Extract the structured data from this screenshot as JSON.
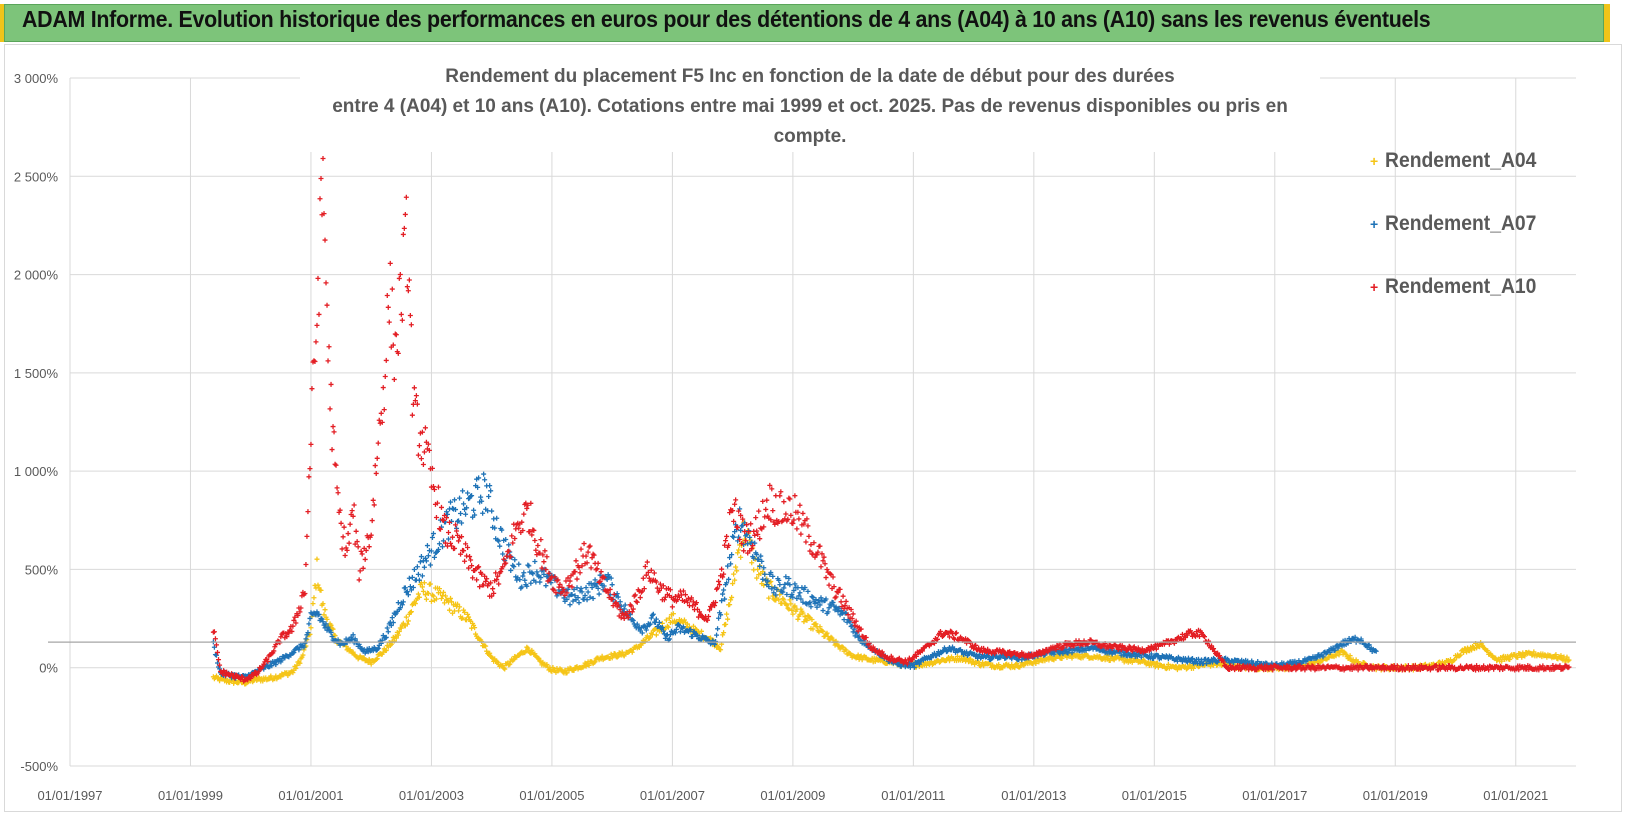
{
  "banner": {
    "title": "ADAM Informe. Evolution historique des performances en euros pour des détentions de 4 ans (A04) à 10 ans (A10) sans les revenus éventuels"
  },
  "chart_data": {
    "type": "scatter",
    "title_line1": "Rendement du placement F5 Inc en fonction de la date de début pour des durées",
    "title_line2": "entre 4 (A04) et 10 ans (A10). Cotations entre mai 1999 et oct. 2025. Pas de revenus disponibles ou pris en compte.",
    "ylim": [
      -500,
      3000
    ],
    "yticks": [
      -500,
      0,
      500,
      1000,
      1500,
      2000,
      2500,
      3000
    ],
    "ytick_labels": [
      "-500%",
      "0%",
      "500%",
      "1 000%",
      "1 500%",
      "2 000%",
      "2 500%",
      "3 000%"
    ],
    "xlim": [
      1997.0,
      2022.0
    ],
    "xtick_labels": [
      "01/01/1997",
      "01/01/1999",
      "01/01/2001",
      "01/01/2003",
      "01/01/2005",
      "01/01/2007",
      "01/01/2009",
      "01/01/2011",
      "01/01/2013",
      "01/01/2015",
      "01/01/2017",
      "01/01/2019",
      "01/01/2021"
    ],
    "grid": true,
    "legend_position": "right",
    "series": [
      {
        "name": "Rendement_A04",
        "color": "#f5c518",
        "x": [
          1999.38,
          1999.5,
          1999.7,
          1999.9,
          2000.1,
          2000.3,
          2000.5,
          2000.7,
          2000.85,
          2001.0,
          2001.1,
          2001.2,
          2001.4,
          2001.6,
          2001.8,
          2002.0,
          2002.2,
          2002.4,
          2002.6,
          2002.75,
          2002.85,
          2003.0,
          2003.2,
          2003.4,
          2003.6,
          2003.8,
          2004.0,
          2004.2,
          2004.4,
          2004.6,
          2004.8,
          2005.0,
          2005.2,
          2005.4,
          2005.6,
          2005.8,
          2006.0,
          2006.2,
          2006.4,
          2006.6,
          2006.8,
          2007.0,
          2007.2,
          2007.4,
          2007.6,
          2007.8,
          2008.0,
          2008.1,
          2008.2,
          2008.4,
          2008.6,
          2008.8,
          2009.0,
          2009.2,
          2009.4,
          2009.6,
          2009.8,
          2010.0,
          2010.3,
          2010.6,
          2010.9,
          2011.2,
          2011.5,
          2011.8,
          2012.1,
          2012.4,
          2012.7,
          2013.0,
          2013.3,
          2013.6,
          2013.9,
          2014.2,
          2014.5,
          2014.8,
          2015.1,
          2015.4,
          2015.7,
          2016.0,
          2016.3,
          2016.6,
          2016.9,
          2017.2,
          2017.5,
          2017.8,
          2018.1,
          2018.4,
          2018.7,
          2019.0,
          2019.3,
          2019.6,
          2019.9,
          2020.1,
          2020.4,
          2020.7,
          2021.0,
          2021.3,
          2021.6,
          2021.9
        ],
        "y": [
          -50,
          -60,
          -70,
          -75,
          -60,
          -55,
          -40,
          -20,
          50,
          200,
          500,
          300,
          150,
          100,
          50,
          30,
          80,
          150,
          250,
          350,
          400,
          380,
          350,
          300,
          250,
          150,
          50,
          0,
          50,
          100,
          30,
          -10,
          -20,
          0,
          20,
          50,
          60,
          70,
          100,
          150,
          200,
          250,
          220,
          180,
          150,
          100,
          400,
          600,
          700,
          500,
          400,
          350,
          300,
          250,
          200,
          150,
          100,
          60,
          40,
          30,
          10,
          20,
          40,
          50,
          20,
          10,
          10,
          30,
          50,
          60,
          60,
          50,
          40,
          30,
          10,
          0,
          10,
          20,
          10,
          0,
          0,
          0,
          10,
          40,
          80,
          20,
          0,
          0,
          0,
          10,
          30,
          80,
          120,
          40,
          60,
          70,
          60,
          40
        ]
      },
      {
        "name": "Rendement_A07",
        "color": "#1f73b7",
        "x": [
          1999.38,
          1999.5,
          1999.7,
          1999.9,
          2000.1,
          2000.3,
          2000.5,
          2000.7,
          2000.9,
          2001.0,
          2001.1,
          2001.3,
          2001.5,
          2001.7,
          2001.9,
          2002.1,
          2002.3,
          2002.5,
          2002.7,
          2002.9,
          2003.1,
          2003.3,
          2003.5,
          2003.7,
          2003.9,
          2004.1,
          2004.3,
          2004.5,
          2004.7,
          2004.9,
          2005.1,
          2005.3,
          2005.5,
          2005.7,
          2005.9,
          2006.1,
          2006.3,
          2006.5,
          2006.7,
          2006.9,
          2007.1,
          2007.3,
          2007.5,
          2007.7,
          2007.9,
          2008.1,
          2008.3,
          2008.5,
          2008.7,
          2008.9,
          2009.1,
          2009.3,
          2009.5,
          2009.7,
          2009.9,
          2010.1,
          2010.4,
          2010.7,
          2011.0,
          2011.3,
          2011.6,
          2011.9,
          2012.2,
          2012.5,
          2012.8,
          2013.1,
          2013.4,
          2013.7,
          2014.0,
          2014.3,
          2014.6,
          2014.9,
          2015.2,
          2015.5,
          2015.8,
          2016.1,
          2016.4,
          2016.7,
          2017.0,
          2017.3,
          2017.6,
          2017.9,
          2018.1,
          2018.4,
          2018.7
        ],
        "y": [
          120,
          -30,
          -40,
          -50,
          -20,
          10,
          40,
          80,
          120,
          250,
          280,
          180,
          120,
          150,
          80,
          100,
          200,
          350,
          450,
          550,
          650,
          750,
          800,
          850,
          900,
          700,
          550,
          450,
          500,
          450,
          400,
          350,
          380,
          400,
          450,
          350,
          250,
          200,
          250,
          150,
          200,
          180,
          150,
          120,
          450,
          750,
          650,
          500,
          400,
          420,
          380,
          350,
          320,
          300,
          250,
          150,
          80,
          20,
          10,
          60,
          100,
          70,
          50,
          60,
          50,
          70,
          80,
          90,
          100,
          80,
          70,
          60,
          50,
          40,
          30,
          40,
          30,
          20,
          10,
          20,
          40,
          80,
          120,
          150,
          70
        ]
      },
      {
        "name": "Rendement_A10",
        "color": "#e31e24",
        "x": [
          1999.38,
          1999.5,
          1999.7,
          1999.9,
          2000.1,
          2000.3,
          2000.5,
          2000.7,
          2000.9,
          2001.0,
          2001.1,
          2001.2,
          2001.3,
          2001.4,
          2001.5,
          2001.6,
          2001.7,
          2001.8,
          2001.9,
          2002.0,
          2002.1,
          2002.2,
          2002.3,
          2002.4,
          2002.5,
          2002.6,
          2002.7,
          2002.8,
          2002.9,
          2003.0,
          2003.1,
          2003.2,
          2003.4,
          2003.6,
          2003.8,
          2004.0,
          2004.2,
          2004.4,
          2004.6,
          2004.8,
          2005.0,
          2005.2,
          2005.4,
          2005.6,
          2005.8,
          2006.0,
          2006.2,
          2006.4,
          2006.6,
          2006.8,
          2007.0,
          2007.2,
          2007.4,
          2007.6,
          2007.8,
          2008.0,
          2008.1,
          2008.2,
          2008.4,
          2008.6,
          2008.8,
          2009.0,
          2009.2,
          2009.4,
          2009.6,
          2009.8,
          2010.0,
          2010.3,
          2010.6,
          2010.9,
          2011.2,
          2011.5,
          2011.8,
          2012.1,
          2012.4,
          2012.7,
          2013.0,
          2013.3,
          2013.6,
          2013.9,
          2014.2,
          2014.5,
          2014.8,
          2015.1,
          2015.4,
          2015.7,
          2015.85,
          2016.2,
          2016.6,
          2017.0,
          2017.4,
          2017.8,
          2018.2,
          2018.6,
          2019.0,
          2019.4,
          2019.8,
          2020.2,
          2020.6,
          2021.0,
          2021.4,
          2021.9
        ],
        "y": [
          200,
          -20,
          -40,
          -60,
          -30,
          50,
          150,
          200,
          400,
          1200,
          1800,
          2500,
          1500,
          1000,
          700,
          600,
          800,
          500,
          600,
          700,
          1100,
          1400,
          1900,
          1600,
          1900,
          2200,
          1300,
          1200,
          1100,
          950,
          850,
          700,
          650,
          550,
          450,
          400,
          500,
          700,
          800,
          600,
          450,
          400,
          500,
          600,
          450,
          350,
          250,
          350,
          500,
          400,
          350,
          350,
          300,
          250,
          450,
          800,
          750,
          650,
          700,
          850,
          800,
          800,
          700,
          600,
          450,
          350,
          250,
          100,
          50,
          30,
          100,
          180,
          150,
          90,
          80,
          70,
          60,
          100,
          120,
          130,
          110,
          100,
          90,
          110,
          150,
          180,
          150,
          0,
          0,
          0,
          0,
          0,
          0,
          0,
          0,
          0,
          0,
          0,
          0,
          0,
          0,
          0
        ]
      }
    ]
  }
}
